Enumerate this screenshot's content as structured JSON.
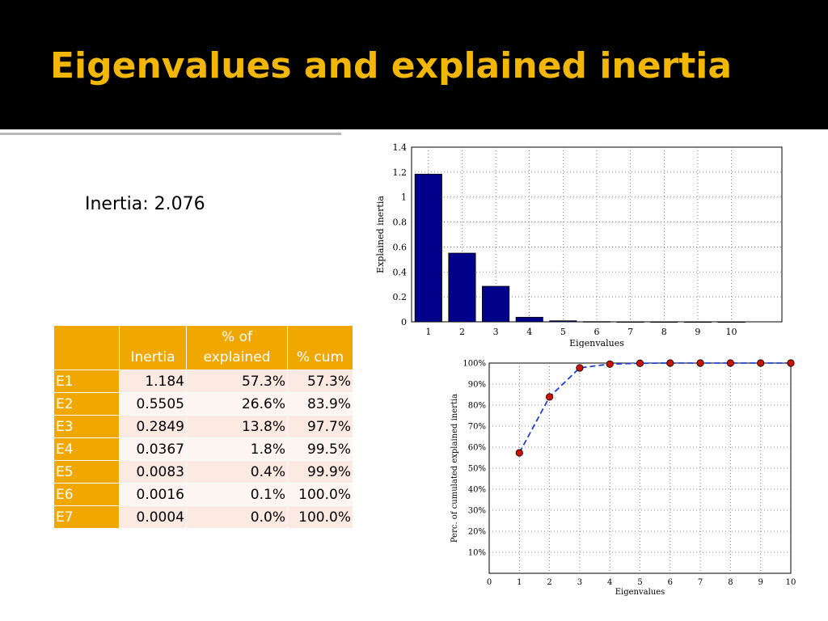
{
  "slide": {
    "title": "Eigenvalues and explained inertia",
    "inertia_text": "Inertia: 2.076"
  },
  "table": {
    "headers": [
      "",
      "Inertia",
      "% of explained",
      "% cum"
    ],
    "rows": [
      {
        "label": "E1",
        "inertia": "1.184",
        "explained": "57.3%",
        "cum": "57.3%"
      },
      {
        "label": "E2",
        "inertia": "0.5505",
        "explained": "26.6%",
        "cum": "83.9%"
      },
      {
        "label": "E3",
        "inertia": "0.2849",
        "explained": "13.8%",
        "cum": "97.7%"
      },
      {
        "label": "E4",
        "inertia": "0.0367",
        "explained": "1.8%",
        "cum": "99.5%"
      },
      {
        "label": "E5",
        "inertia": "0.0083",
        "explained": "0.4%",
        "cum": "99.9%"
      },
      {
        "label": "E6",
        "inertia": "0.0016",
        "explained": "0.1%",
        "cum": "100.0%"
      },
      {
        "label": "E7",
        "inertia": "0.0004",
        "explained": "0.0%",
        "cum": "100.0%"
      }
    ]
  },
  "colors": {
    "title": "#f2b705",
    "header_fill": "#f0a800",
    "bar_fill": "#00008b",
    "line": "#1f3fcf",
    "marker": "#cc1100"
  },
  "chart_data": [
    {
      "type": "bar",
      "categories": [
        "1",
        "2",
        "3",
        "4",
        "5",
        "6",
        "7",
        "8",
        "9",
        "10"
      ],
      "values": [
        1.184,
        0.5505,
        0.2849,
        0.0367,
        0.0083,
        0.0016,
        0.0004,
        0.0002,
        0.0001,
        0.0001
      ],
      "ylabel": "Explained inertia",
      "xlabel": "Eigenvalues",
      "xlim": [
        0.5,
        11.5
      ],
      "ylim": [
        0,
        1.4
      ],
      "yticks": [
        0,
        0.2,
        0.4,
        0.6,
        0.8,
        1,
        1.2,
        1.4
      ],
      "grid": true
    },
    {
      "type": "line",
      "x": [
        1,
        2,
        3,
        4,
        5,
        6,
        7,
        8,
        9,
        10
      ],
      "y": [
        57.3,
        83.9,
        97.7,
        99.5,
        99.9,
        100,
        100,
        100,
        100,
        100
      ],
      "ylabel": "Perc. of cumulated explained inertia",
      "xlabel": "Eigenvalues",
      "xlim": [
        0,
        10
      ],
      "ylim": [
        0,
        100
      ],
      "xticks": [
        0,
        1,
        2,
        3,
        4,
        5,
        6,
        7,
        8,
        9,
        10
      ],
      "yticks": [
        10,
        20,
        30,
        40,
        50,
        60,
        70,
        80,
        90,
        100
      ],
      "ytick_labels": [
        "10%",
        "20%",
        "30%",
        "40%",
        "50%",
        "60%",
        "70%",
        "80%",
        "90%",
        "100%"
      ],
      "grid": true
    }
  ]
}
